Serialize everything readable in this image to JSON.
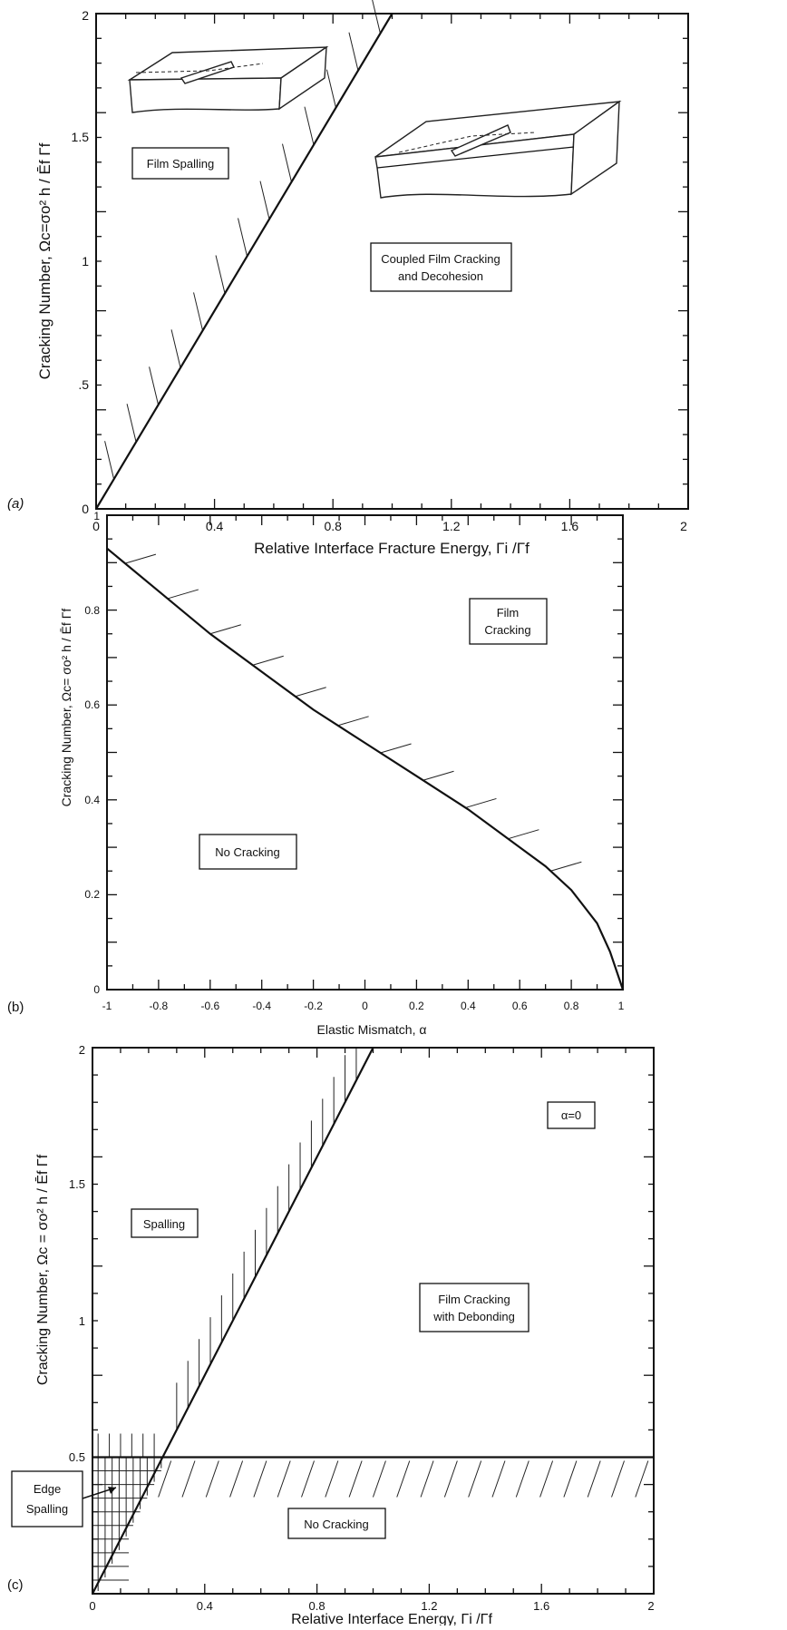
{
  "chart_data": [
    {
      "panel": "(a)",
      "type": "line",
      "xlabel": "Relative Interface Fracture Energy,  Γi /Γf",
      "ylabel": "Cracking Number,  Ωc=σo² h / Ēf Γf",
      "xlim": [
        0,
        2
      ],
      "ylim": [
        0,
        2
      ],
      "xticks": [
        "0",
        "0.4",
        "0.8",
        "1.2",
        "1.6",
        "2"
      ],
      "yticks": [
        "0",
        ".5",
        "1",
        "1.5",
        "2"
      ],
      "series": [
        {
          "x": [
            0,
            1
          ],
          "y": [
            0,
            2
          ]
        }
      ],
      "annotations": [
        "Film Spalling",
        "Coupled Film Cracking",
        "and Decohesion"
      ]
    },
    {
      "panel": "(b)",
      "type": "line",
      "xlabel": "Elastic Mismatch,  α",
      "ylabel": "Cracking Number,  Ωc= σo² h / Ēf Γf",
      "xlim": [
        -1,
        1
      ],
      "ylim": [
        0,
        1
      ],
      "xticks": [
        "-1",
        "-0.8",
        "-0.6",
        "-0.4",
        "-0.2",
        "0",
        "0.2",
        "0.4",
        "0.6",
        "0.8",
        "1"
      ],
      "yticks": [
        "0",
        "0.2",
        "0.4",
        "0.6",
        "0.8",
        "1"
      ],
      "series": [
        {
          "x": [
            -1,
            -0.8,
            -0.6,
            -0.4,
            -0.2,
            0,
            0.2,
            0.4,
            0.6,
            0.7,
            0.8,
            0.9,
            0.95,
            1
          ],
          "y": [
            0.93,
            0.84,
            0.75,
            0.67,
            0.59,
            0.52,
            0.45,
            0.38,
            0.3,
            0.26,
            0.21,
            0.14,
            0.08,
            0
          ]
        }
      ],
      "annotations": [
        "Film",
        "Cracking",
        "No Cracking"
      ]
    },
    {
      "panel": "(c)",
      "type": "line",
      "xlabel": "Relative Interface Energy,  Γi /Γf",
      "ylabel": "Cracking Number,  Ωc = σo² h / Ēf Γf",
      "xlim": [
        0,
        2
      ],
      "ylim": [
        0,
        2
      ],
      "xticks": [
        "0",
        "0.4",
        "0.8",
        "1.2",
        "1.6",
        "2"
      ],
      "yticks": [
        "0.5",
        "1",
        "1.5",
        "2"
      ],
      "series": [
        {
          "x": [
            0,
            1
          ],
          "y": [
            0,
            2
          ]
        },
        {
          "x": [
            0,
            2
          ],
          "y": [
            0.5,
            0.5
          ]
        }
      ],
      "annotations": [
        "α=0",
        "Spalling",
        "Film Cracking",
        "with Debonding",
        "No Cracking",
        "Edge",
        "Spalling"
      ]
    }
  ],
  "panel_labels": [
    "(a)",
    "(b)",
    "(c)"
  ]
}
